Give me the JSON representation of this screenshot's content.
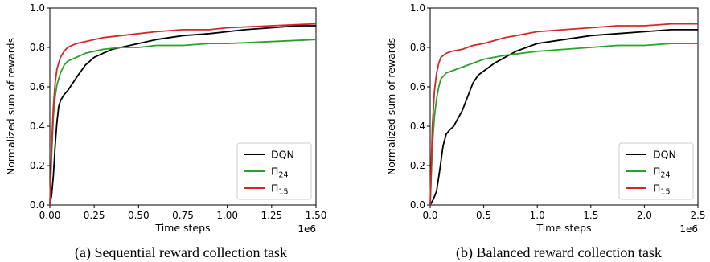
{
  "chart_data": [
    {
      "type": "line",
      "caption": "(a) Sequential reward collection task",
      "xlabel": "Time steps",
      "ylabel": "Normalized sum of rewards",
      "x_offset_label": "1e6",
      "xlim": [
        0,
        1.5
      ],
      "ylim": [
        0,
        1.0
      ],
      "xticks": [
        "0.00",
        "0.25",
        "0.50",
        "0.75",
        "1.00",
        "1.25",
        "1.50"
      ],
      "yticks": [
        "0.0",
        "0.2",
        "0.4",
        "0.6",
        "0.8",
        "1.0"
      ],
      "legend_position": "lower-right",
      "series": [
        {
          "name": "DQN",
          "name_base": "DQN",
          "name_sub": "",
          "color": "#000000",
          "x": [
            0,
            0.01,
            0.02,
            0.03,
            0.04,
            0.05,
            0.06,
            0.08,
            0.1,
            0.13,
            0.16,
            0.2,
            0.25,
            0.3,
            0.35,
            0.4,
            0.5,
            0.6,
            0.75,
            0.9,
            1.0,
            1.1,
            1.25,
            1.4,
            1.5
          ],
          "y": [
            0.0,
            0.05,
            0.15,
            0.3,
            0.42,
            0.5,
            0.53,
            0.56,
            0.58,
            0.62,
            0.66,
            0.71,
            0.75,
            0.77,
            0.79,
            0.8,
            0.82,
            0.84,
            0.86,
            0.87,
            0.88,
            0.89,
            0.9,
            0.91,
            0.91
          ]
        },
        {
          "name": "Π24",
          "name_base": "Π",
          "name_sub": "24",
          "color": "#2ca02c",
          "x": [
            0,
            0.01,
            0.02,
            0.03,
            0.04,
            0.06,
            0.08,
            0.1,
            0.15,
            0.2,
            0.3,
            0.4,
            0.5,
            0.6,
            0.75,
            0.9,
            1.0,
            1.25,
            1.5
          ],
          "y": [
            0.0,
            0.25,
            0.45,
            0.55,
            0.61,
            0.67,
            0.71,
            0.73,
            0.75,
            0.77,
            0.79,
            0.8,
            0.8,
            0.81,
            0.81,
            0.82,
            0.82,
            0.83,
            0.84
          ]
        },
        {
          "name": "Π15",
          "name_base": "Π",
          "name_sub": "15",
          "color": "#d62728",
          "x": [
            0,
            0.01,
            0.02,
            0.03,
            0.04,
            0.06,
            0.08,
            0.1,
            0.15,
            0.2,
            0.3,
            0.4,
            0.5,
            0.6,
            0.75,
            0.9,
            1.0,
            1.25,
            1.5
          ],
          "y": [
            0.0,
            0.3,
            0.5,
            0.62,
            0.69,
            0.75,
            0.78,
            0.8,
            0.82,
            0.83,
            0.85,
            0.86,
            0.87,
            0.88,
            0.89,
            0.89,
            0.9,
            0.91,
            0.92
          ]
        }
      ]
    },
    {
      "type": "line",
      "caption": "(b) Balanced reward collection task",
      "xlabel": "Time steps",
      "ylabel": "Normalized sum of rewards",
      "x_offset_label": "1e6",
      "xlim": [
        0,
        2.5
      ],
      "ylim": [
        0,
        1.0
      ],
      "xticks": [
        "0.0",
        "0.5",
        "1.0",
        "1.5",
        "2.0",
        "2.5"
      ],
      "yticks": [
        "0.0",
        "0.2",
        "0.4",
        "0.6",
        "0.8",
        "1.0"
      ],
      "legend_position": "lower-right",
      "series": [
        {
          "name": "DQN",
          "name_base": "DQN",
          "name_sub": "",
          "color": "#000000",
          "x": [
            0,
            0.03,
            0.06,
            0.09,
            0.12,
            0.15,
            0.18,
            0.22,
            0.26,
            0.3,
            0.35,
            0.4,
            0.45,
            0.5,
            0.55,
            0.6,
            0.7,
            0.8,
            1.0,
            1.25,
            1.5,
            1.75,
            2.0,
            2.25,
            2.5
          ],
          "y": [
            0.0,
            0.03,
            0.07,
            0.18,
            0.3,
            0.36,
            0.38,
            0.4,
            0.44,
            0.48,
            0.55,
            0.62,
            0.66,
            0.68,
            0.7,
            0.72,
            0.75,
            0.78,
            0.82,
            0.84,
            0.86,
            0.87,
            0.88,
            0.89,
            0.89
          ]
        },
        {
          "name": "Π24",
          "name_base": "Π",
          "name_sub": "24",
          "color": "#2ca02c",
          "x": [
            0,
            0.02,
            0.04,
            0.06,
            0.08,
            0.1,
            0.15,
            0.2,
            0.3,
            0.4,
            0.5,
            0.7,
            1.0,
            1.25,
            1.5,
            1.75,
            2.0,
            2.25,
            2.5
          ],
          "y": [
            0.0,
            0.3,
            0.45,
            0.54,
            0.6,
            0.64,
            0.67,
            0.68,
            0.7,
            0.72,
            0.74,
            0.76,
            0.78,
            0.79,
            0.8,
            0.81,
            0.81,
            0.82,
            0.82
          ]
        },
        {
          "name": "Π15",
          "name_base": "Π",
          "name_sub": "15",
          "color": "#d62728",
          "x": [
            0,
            0.02,
            0.04,
            0.06,
            0.08,
            0.1,
            0.15,
            0.2,
            0.3,
            0.4,
            0.5,
            0.7,
            1.0,
            1.25,
            1.5,
            1.75,
            2.0,
            2.25,
            2.5
          ],
          "y": [
            0.0,
            0.4,
            0.58,
            0.67,
            0.72,
            0.75,
            0.77,
            0.78,
            0.79,
            0.81,
            0.82,
            0.85,
            0.88,
            0.89,
            0.9,
            0.91,
            0.91,
            0.92,
            0.92
          ]
        }
      ]
    }
  ]
}
